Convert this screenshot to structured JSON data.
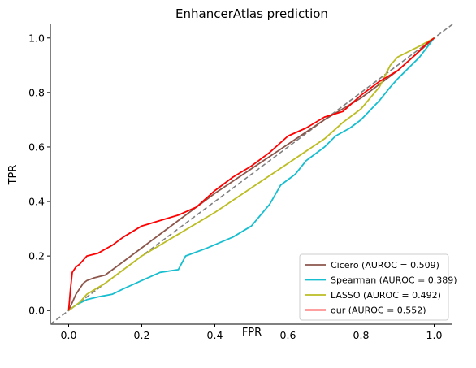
{
  "chart_data": {
    "type": "line",
    "title": "EnhancerAtlas prediction",
    "xlabel": "FPR",
    "ylabel": "TPR",
    "xlim": [
      -0.05,
      1.05
    ],
    "ylim": [
      -0.05,
      1.05
    ],
    "xticks": [
      "0.0",
      "0.2",
      "0.4",
      "0.6",
      "0.8",
      "1.0"
    ],
    "yticks": [
      "0.0",
      "0.2",
      "0.4",
      "0.6",
      "0.8",
      "1.0"
    ],
    "grid": false,
    "legend_position": "lower right",
    "diagonal": {
      "style": "dashed",
      "color": "#808080"
    },
    "series": [
      {
        "name": "Cicero (AUROC = 0.509)",
        "color": "#8c564b",
        "points": [
          [
            0,
            0
          ],
          [
            0.01,
            0.03
          ],
          [
            0.02,
            0.06
          ],
          [
            0.03,
            0.08
          ],
          [
            0.04,
            0.1
          ],
          [
            0.05,
            0.11
          ],
          [
            0.07,
            0.12
          ],
          [
            0.1,
            0.13
          ],
          [
            0.2,
            0.23
          ],
          [
            0.3,
            0.33
          ],
          [
            0.4,
            0.43
          ],
          [
            0.5,
            0.52
          ],
          [
            0.6,
            0.61
          ],
          [
            0.7,
            0.7
          ],
          [
            0.8,
            0.78
          ],
          [
            0.85,
            0.83
          ],
          [
            0.9,
            0.88
          ],
          [
            0.95,
            0.94
          ],
          [
            1,
            1
          ]
        ]
      },
      {
        "name": "Spearman (AUROC = 0.389)",
        "color": "#17becf",
        "points": [
          [
            0,
            0
          ],
          [
            0.02,
            0.02
          ],
          [
            0.05,
            0.04
          ],
          [
            0.08,
            0.05
          ],
          [
            0.12,
            0.06
          ],
          [
            0.15,
            0.08
          ],
          [
            0.2,
            0.11
          ],
          [
            0.25,
            0.14
          ],
          [
            0.3,
            0.15
          ],
          [
            0.32,
            0.2
          ],
          [
            0.38,
            0.23
          ],
          [
            0.45,
            0.27
          ],
          [
            0.5,
            0.31
          ],
          [
            0.55,
            0.39
          ],
          [
            0.58,
            0.46
          ],
          [
            0.62,
            0.5
          ],
          [
            0.65,
            0.55
          ],
          [
            0.7,
            0.6
          ],
          [
            0.73,
            0.64
          ],
          [
            0.77,
            0.67
          ],
          [
            0.8,
            0.7
          ],
          [
            0.85,
            0.77
          ],
          [
            0.88,
            0.82
          ],
          [
            0.9,
            0.85
          ],
          [
            0.93,
            0.89
          ],
          [
            0.96,
            0.93
          ],
          [
            1,
            1
          ]
        ]
      },
      {
        "name": "LASSO (AUROC = 0.492)",
        "color": "#bcbd22",
        "points": [
          [
            0,
            0
          ],
          [
            0.03,
            0.03
          ],
          [
            0.05,
            0.06
          ],
          [
            0.1,
            0.1
          ],
          [
            0.2,
            0.2
          ],
          [
            0.3,
            0.28
          ],
          [
            0.4,
            0.36
          ],
          [
            0.5,
            0.45
          ],
          [
            0.6,
            0.54
          ],
          [
            0.7,
            0.63
          ],
          [
            0.75,
            0.69
          ],
          [
            0.8,
            0.74
          ],
          [
            0.85,
            0.82
          ],
          [
            0.88,
            0.9
          ],
          [
            0.9,
            0.93
          ],
          [
            0.93,
            0.95
          ],
          [
            0.96,
            0.97
          ],
          [
            1,
            1
          ]
        ]
      },
      {
        "name": "our (AUROC = 0.552)",
        "color": "#ff0000",
        "points": [
          [
            0,
            0
          ],
          [
            0.005,
            0.08
          ],
          [
            0.01,
            0.14
          ],
          [
            0.02,
            0.16
          ],
          [
            0.03,
            0.17
          ],
          [
            0.05,
            0.2
          ],
          [
            0.08,
            0.21
          ],
          [
            0.12,
            0.24
          ],
          [
            0.15,
            0.27
          ],
          [
            0.2,
            0.31
          ],
          [
            0.25,
            0.33
          ],
          [
            0.3,
            0.35
          ],
          [
            0.35,
            0.38
          ],
          [
            0.4,
            0.44
          ],
          [
            0.45,
            0.49
          ],
          [
            0.5,
            0.53
          ],
          [
            0.55,
            0.58
          ],
          [
            0.6,
            0.64
          ],
          [
            0.65,
            0.67
          ],
          [
            0.7,
            0.71
          ],
          [
            0.75,
            0.73
          ],
          [
            0.8,
            0.79
          ],
          [
            0.85,
            0.84
          ],
          [
            0.9,
            0.88
          ],
          [
            0.95,
            0.94
          ],
          [
            0.98,
            0.98
          ],
          [
            1,
            1
          ]
        ]
      }
    ]
  }
}
